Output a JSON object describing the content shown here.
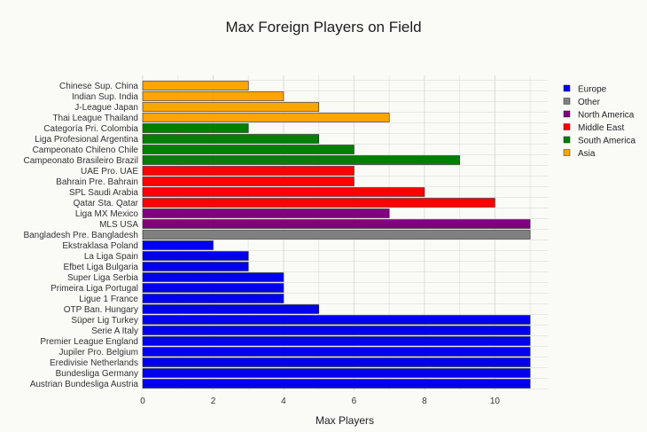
{
  "chart_data": {
    "type": "bar",
    "orientation": "horizontal",
    "title": "Max Foreign Players on Field",
    "xlabel": "Max Players",
    "ylabel": "",
    "xlim": [
      0,
      11.5
    ],
    "xticks": [
      0,
      2,
      4,
      6,
      8,
      10
    ],
    "grid": true,
    "legend_position": "right",
    "legend": [
      {
        "name": "Europe",
        "color": "#0000ee"
      },
      {
        "name": "Other",
        "color": "#808080"
      },
      {
        "name": "North America",
        "color": "#800080"
      },
      {
        "name": "Middle East",
        "color": "#ff0000"
      },
      {
        "name": "South America",
        "color": "#007f00"
      },
      {
        "name": "Asia",
        "color": "#ffa500"
      }
    ],
    "bars": [
      {
        "label": "Chinese Sup. China",
        "value": 3,
        "group": "Asia"
      },
      {
        "label": "Indian Sup. India",
        "value": 4,
        "group": "Asia"
      },
      {
        "label": "J-League Japan",
        "value": 5,
        "group": "Asia"
      },
      {
        "label": "Thai League Thailand",
        "value": 7,
        "group": "Asia"
      },
      {
        "label": "Categoría Pri. Colombia",
        "value": 3,
        "group": "South America"
      },
      {
        "label": "Liga Profesional Argentina",
        "value": 5,
        "group": "South America"
      },
      {
        "label": "Campeonato Chileno Chile",
        "value": 6,
        "group": "South America"
      },
      {
        "label": "Campeonato Brasileiro Brazil",
        "value": 9,
        "group": "South America"
      },
      {
        "label": "UAE Pro. UAE",
        "value": 6,
        "group": "Middle East"
      },
      {
        "label": "Bahrain Pre. Bahrain",
        "value": 6,
        "group": "Middle East"
      },
      {
        "label": "SPL Saudi Arabia",
        "value": 8,
        "group": "Middle East"
      },
      {
        "label": "Qatar Sta. Qatar",
        "value": 10,
        "group": "Middle East"
      },
      {
        "label": "Liga MX Mexico",
        "value": 7,
        "group": "North America"
      },
      {
        "label": "MLS USA",
        "value": 11,
        "group": "North America"
      },
      {
        "label": "Bangladesh Pre. Bangladesh",
        "value": 11,
        "group": "Other"
      },
      {
        "label": "Ekstraklasa Poland",
        "value": 2,
        "group": "Europe"
      },
      {
        "label": "La Liga Spain",
        "value": 3,
        "group": "Europe"
      },
      {
        "label": "Efbet Liga Bulgaria",
        "value": 3,
        "group": "Europe"
      },
      {
        "label": "Super Liga Serbia",
        "value": 4,
        "group": "Europe"
      },
      {
        "label": "Primeira Liga Portugal",
        "value": 4,
        "group": "Europe"
      },
      {
        "label": "Ligue 1 France",
        "value": 4,
        "group": "Europe"
      },
      {
        "label": "OTP Ban. Hungary",
        "value": 5,
        "group": "Europe"
      },
      {
        "label": "Süper Lig Turkey",
        "value": 11,
        "group": "Europe"
      },
      {
        "label": "Serie A Italy",
        "value": 11,
        "group": "Europe"
      },
      {
        "label": "Premier League England",
        "value": 11,
        "group": "Europe"
      },
      {
        "label": "Jupiler Pro. Belgium",
        "value": 11,
        "group": "Europe"
      },
      {
        "label": "Eredivisie Netherlands",
        "value": 11,
        "group": "Europe"
      },
      {
        "label": "Bundesliga Germany",
        "value": 11,
        "group": "Europe"
      },
      {
        "label": "Austrian Bundesliga Austria",
        "value": 11,
        "group": "Europe"
      }
    ]
  }
}
